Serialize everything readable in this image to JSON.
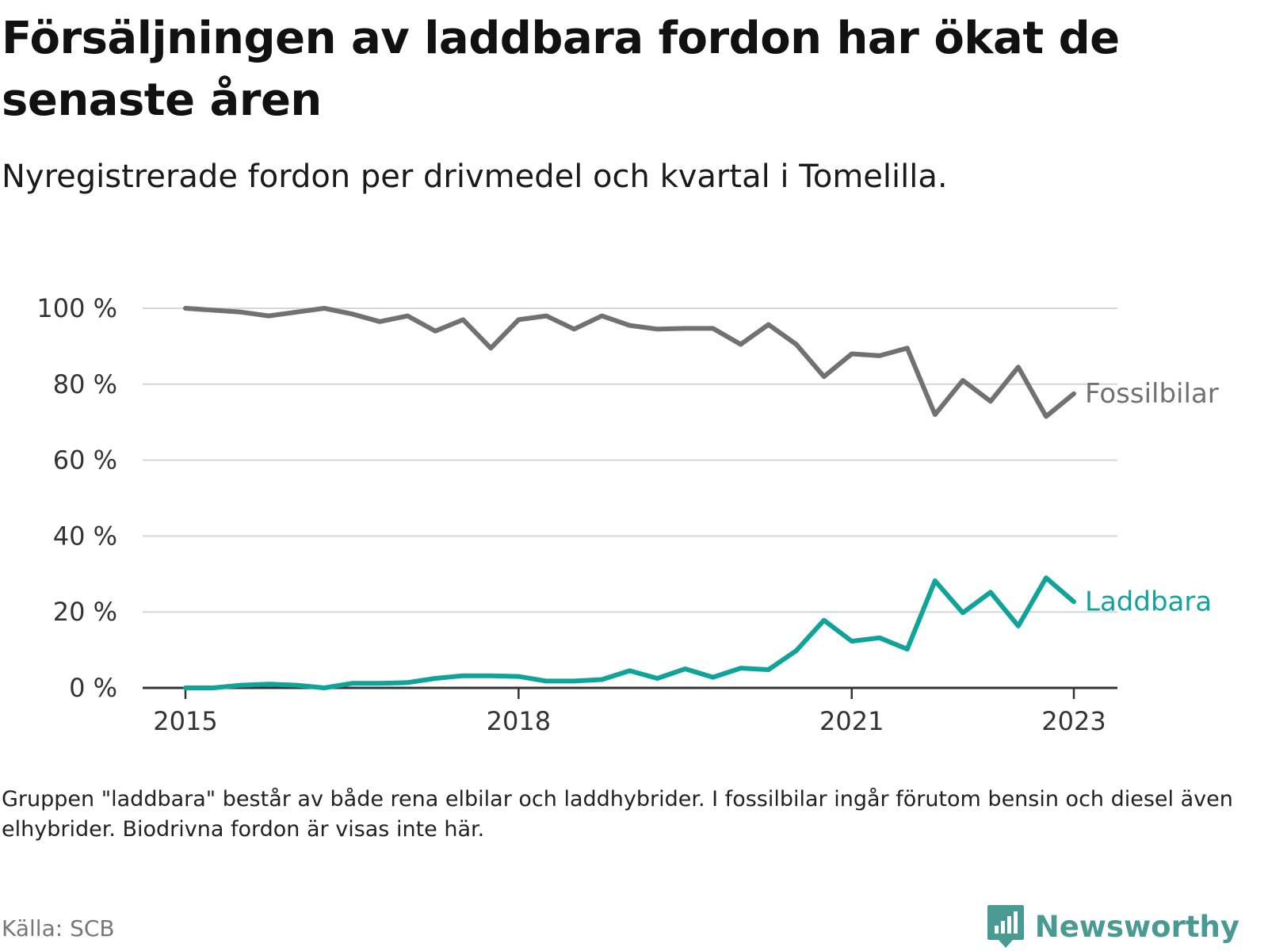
{
  "title": "Försäljningen av laddbara fordon har ökat de senaste åren",
  "subtitle": "Nyregistrerade fordon per drivmedel och kvartal i Tomelilla.",
  "note": "Gruppen \"laddbara\" består av både rena elbilar och laddhybrider. I fossilbilar ingår förutom bensin och diesel även elhybrider. Biodrivna fordon är visas inte här.",
  "source": "Källa: SCB",
  "brand": {
    "name": "Newsworthy",
    "icon": "newsworthy-logo-icon",
    "color": "#4a9a94"
  },
  "chart_data": {
    "type": "line",
    "x": [
      "2015-Q1",
      "2015-Q2",
      "2015-Q3",
      "2015-Q4",
      "2016-Q1",
      "2016-Q2",
      "2016-Q3",
      "2016-Q4",
      "2017-Q1",
      "2017-Q2",
      "2017-Q3",
      "2017-Q4",
      "2018-Q1",
      "2018-Q2",
      "2018-Q3",
      "2018-Q4",
      "2019-Q1",
      "2019-Q2",
      "2019-Q3",
      "2019-Q4",
      "2020-Q1",
      "2020-Q2",
      "2020-Q3",
      "2020-Q4",
      "2021-Q1",
      "2021-Q2",
      "2021-Q3",
      "2021-Q4",
      "2022-Q1",
      "2022-Q2",
      "2022-Q3",
      "2022-Q4",
      "2023-Q1"
    ],
    "x_ticks": [
      "2015",
      "2018",
      "2021",
      "2023"
    ],
    "y_ticks": [
      "0 %",
      "20 %",
      "40 %",
      "60 %",
      "80 %",
      "100 %"
    ],
    "ylim": [
      0,
      100
    ],
    "grid": true,
    "series": [
      {
        "name": "Fossilbilar",
        "color": "#707075",
        "values": [
          100,
          99.5,
          99,
          98,
          99,
          100,
          98.5,
          96.5,
          98,
          94,
          97,
          89.5,
          97,
          98,
          94.5,
          98,
          95.5,
          94.5,
          94.7,
          94.7,
          90.5,
          95.7,
          90.5,
          82,
          88,
          87.5,
          89.5,
          72,
          81,
          75.5,
          84.5,
          71.5,
          77.5
        ]
      },
      {
        "name": "Laddbara",
        "color": "#0fa39a",
        "values": [
          0,
          0,
          0.7,
          1,
          0.7,
          0,
          1.2,
          1.2,
          1.4,
          2.5,
          3.2,
          3.2,
          3,
          1.8,
          1.8,
          2.2,
          4.5,
          2.5,
          5,
          2.8,
          5.2,
          4.8,
          9.8,
          17.8,
          12.3,
          13.2,
          10.2,
          28.2,
          19.8,
          25.2,
          16.3,
          29,
          22.7
        ]
      }
    ]
  }
}
